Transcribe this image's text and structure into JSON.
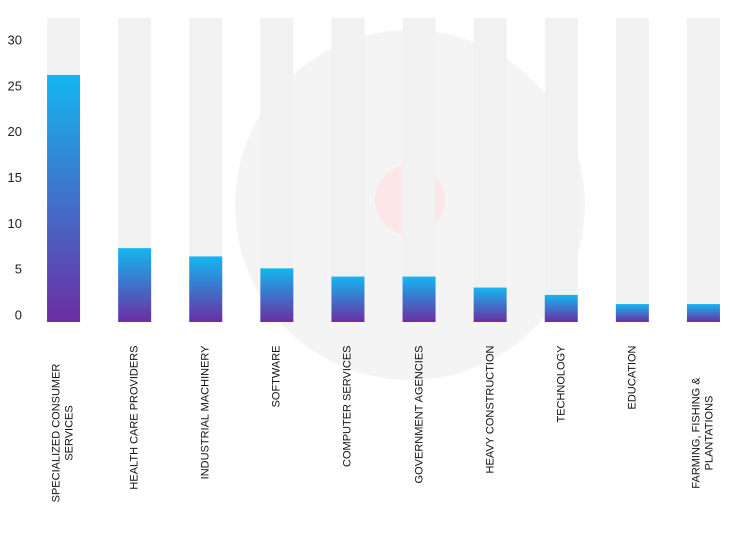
{
  "chart_data": {
    "type": "bar",
    "categories": [
      "SPECIALIZED CONSUMER SERVICES",
      "HEALTH CARE PROVIDERS",
      "INDUSTRIAL MACHINERY",
      "SOFTWARE",
      "COMPUTER SERVICES",
      "GOVERNMENT AGENCIES",
      "HEAVY CONSTRUCTION",
      "TECHNOLOGY",
      "EDUCATION",
      "FARMING, FISHING & PLANTATIONS"
    ],
    "values": [
      26.3,
      7.4,
      6.5,
      5.2,
      4.3,
      4.3,
      3.1,
      2.3,
      1.3,
      1.3
    ],
    "gradient": [
      "#14b6f0",
      "#6b2ea3"
    ],
    "track_color": "#f1f1f1",
    "ylim": [
      0,
      30
    ],
    "yticks": [
      0,
      5,
      10,
      15,
      20,
      25,
      30
    ]
  }
}
